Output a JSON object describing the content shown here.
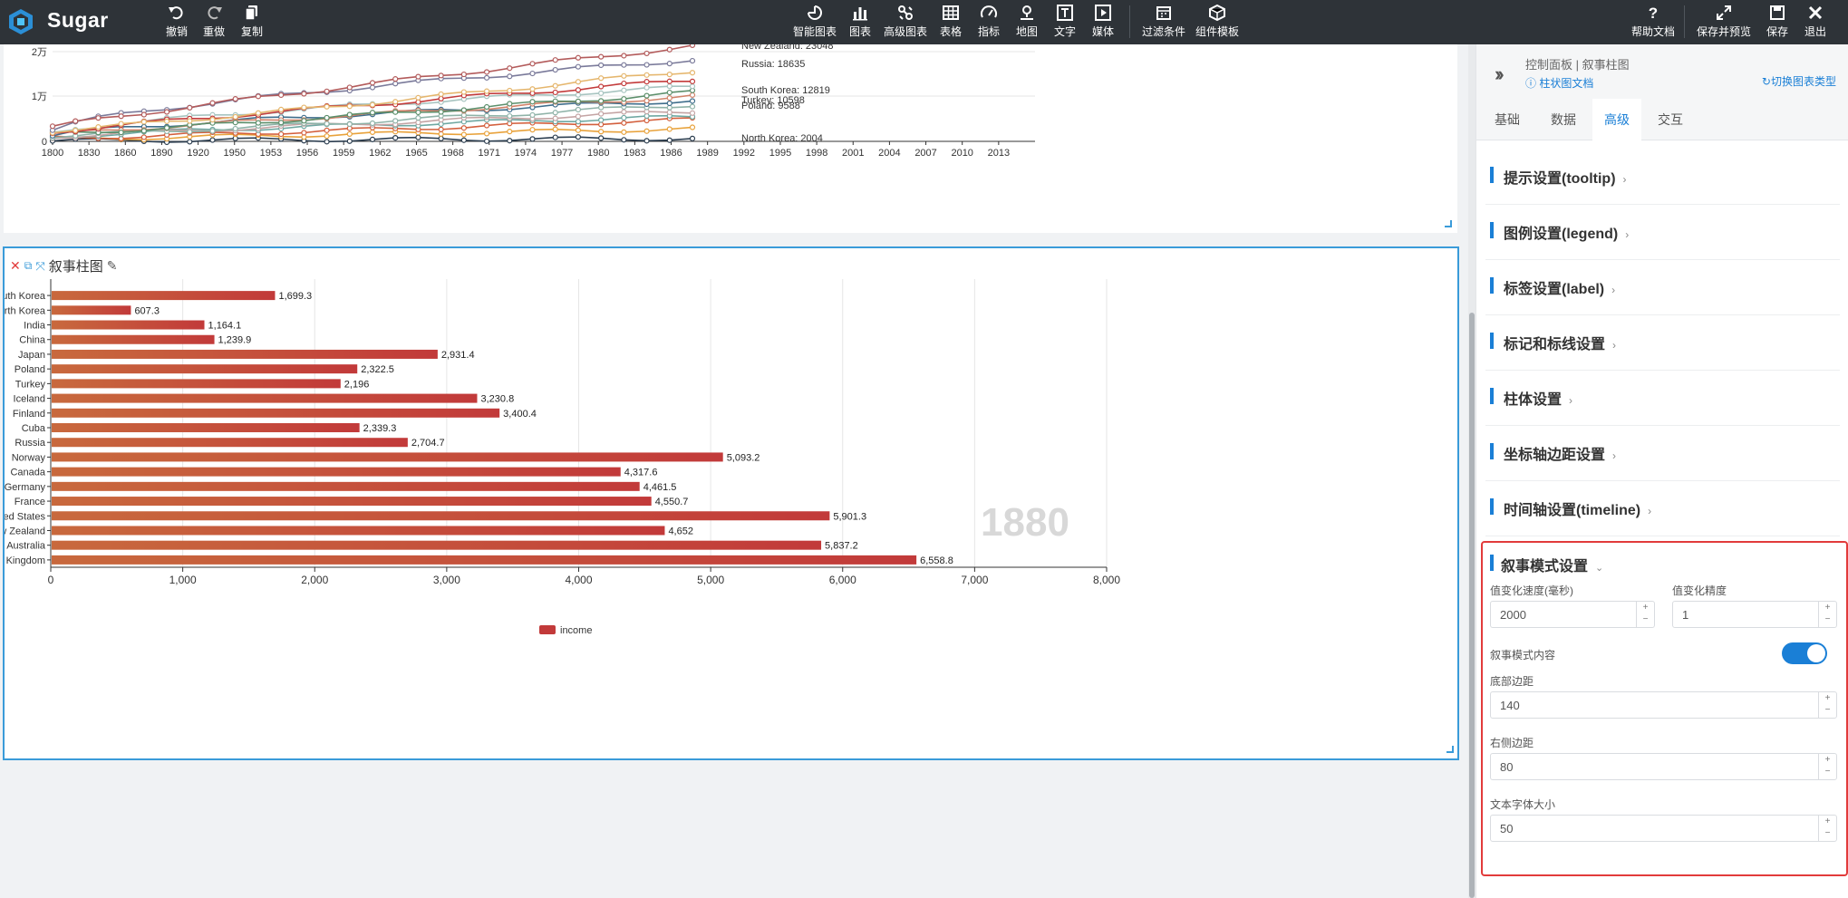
{
  "app": {
    "name": "Sugar"
  },
  "toolbar": {
    "undo": "撤销",
    "redo": "重做",
    "copy": "复制",
    "smart_chart": "智能图表",
    "chart": "图表",
    "adv_chart": "高级图表",
    "table": "表格",
    "metric": "指标",
    "map": "地图",
    "text": "文字",
    "media": "媒体",
    "filter": "过滤条件",
    "template": "组件模板",
    "help": "帮助文档",
    "save_preview": "保存并预览",
    "save": "保存",
    "exit": "退出"
  },
  "line_chart": {
    "y_ticks": [
      "0",
      "1万",
      "2万"
    ],
    "x_ticks": [
      "1800",
      "1830",
      "1860",
      "1890",
      "1920",
      "1950",
      "1953",
      "1956",
      "1959",
      "1962",
      "1965",
      "1968",
      "1971",
      "1974",
      "1977",
      "1980",
      "1983",
      "1986",
      "1989",
      "1992",
      "1995",
      "1998",
      "2001",
      "2004",
      "2007",
      "2010",
      "2013"
    ],
    "end_labels": [
      "New Zealand: 23048",
      "Russia: 18635",
      "South Korea: 12819",
      "Turkey: 10598",
      "Poland: 9588",
      "North Korea: 2004"
    ]
  },
  "bar_card": {
    "title": "叙事柱图"
  },
  "chart_data": {
    "type": "bar",
    "orientation": "horizontal",
    "categories": [
      "South Korea",
      "North Korea",
      "India",
      "China",
      "Japan",
      "Poland",
      "Turkey",
      "Iceland",
      "Finland",
      "Cuba",
      "Russia",
      "Norway",
      "Canada",
      "Germany",
      "France",
      "United States",
      "New Zealand",
      "Australia",
      "United Kingdom"
    ],
    "category_labels_shown": [
      "outh Korea",
      "orth Korea",
      "India",
      "China",
      "Japan",
      "Poland",
      "Turkey",
      "Iceland",
      "Finland",
      "Cuba",
      "Russia",
      "Norway",
      "Canada",
      "Germany",
      "France",
      "ted States",
      "w Zealand",
      "Australia",
      "d Kingdom"
    ],
    "series": [
      {
        "name": "income",
        "values": [
          1699.3,
          607.3,
          1164.1,
          1239.9,
          2931.4,
          2322.5,
          2196,
          3230.8,
          3400.4,
          2339.3,
          2704.7,
          5093.2,
          4317.6,
          4461.5,
          4550.7,
          5901.3,
          4652,
          5837.2,
          6558.8
        ],
        "value_labels": [
          "1,699.3",
          "607.3",
          "1,164.1",
          "1,239.9",
          "2,931.4",
          "2,322.5",
          "2,196",
          "3,230.8",
          "3,400.4",
          "2,339.3",
          "2,704.7",
          "5,093.2",
          "4,317.6",
          "4,461.5",
          "4,550.7",
          "5,901.3",
          "4,652",
          "5,837.2",
          "6,558.8"
        ]
      }
    ],
    "x_ticks": [
      "0",
      "1,000",
      "2,000",
      "3,000",
      "4,000",
      "5,000",
      "6,000",
      "7,000",
      "8,000"
    ],
    "xlim": [
      0,
      8000
    ],
    "timeline_label": "1880",
    "legend": "bottom-center",
    "grid": true,
    "colors": {
      "bar_start": "#c8693d",
      "bar_end": "#c23a3a"
    }
  },
  "panel": {
    "title": "控制面板 | 叙事柱图",
    "doc_link": "柱状图文档",
    "switch_type": "切换图表类型",
    "tabs": [
      "基础",
      "数据",
      "高级",
      "交互"
    ],
    "active_tab": "高级",
    "sections": [
      "提示设置(tooltip)",
      "图例设置(legend)",
      "标签设置(label)",
      "标记和标线设置",
      "柱体设置",
      "坐标轴边距设置",
      "时间轴设置(timeline)"
    ],
    "narrative": {
      "title": "叙事模式设置",
      "speed_label": "值变化速度(毫秒)",
      "speed_value": "2000",
      "precision_label": "值变化精度",
      "precision_value": "1",
      "content_label": "叙事模式内容",
      "bottom_label": "底部边距",
      "bottom_value": "140",
      "right_label": "右侧边距",
      "right_value": "80",
      "font_label": "文本字体大小",
      "font_value": "50"
    }
  }
}
